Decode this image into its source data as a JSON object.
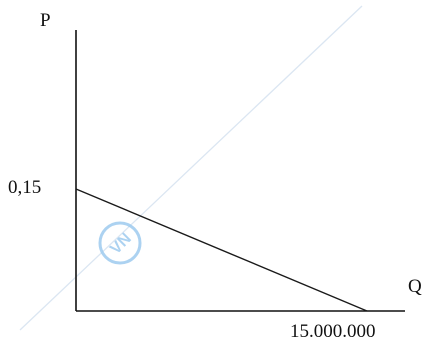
{
  "chart_data": {
    "type": "line",
    "ylabel": "P",
    "xlabel": "Q",
    "y_tick_label": "0,15",
    "x_tick_label": "15.000.000",
    "xlim": [
      0,
      15000000
    ],
    "ylim": [
      0,
      0.15
    ],
    "series": [
      {
        "x": [
          0,
          15000000
        ],
        "y": [
          0.15,
          0
        ]
      }
    ],
    "grid": false
  },
  "watermark": {
    "text": "VN"
  },
  "colors": {
    "axis": "#111111",
    "line": "#1a1a1a",
    "watermark": "#9ecbef",
    "watermark_line": "#dbe6f2"
  }
}
